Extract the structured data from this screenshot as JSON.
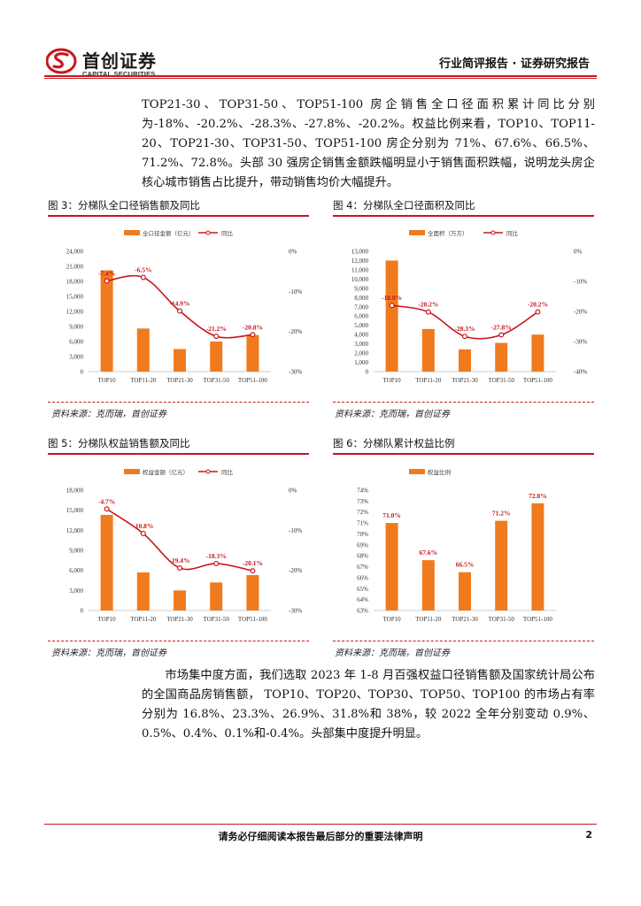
{
  "header": {
    "logo_cn": "首创证券",
    "logo_en": "CAPITAL SECURITIES",
    "report_type": "行业简评报告 · 证券研究报告",
    "brand_color": "#c8161d"
  },
  "paragraphs": [
    "TOP21-30、TOP31-50、TOP51-100 房企销售全口径面积累计同比分别为-18%、-20.2%、-28.3%、-27.8%、-20.2%。权益比例来看，TOP10、TOP11-20、TOP21-30、TOP31-50、TOP51-100 房企分别为 71%、67.6%、66.5%、71.2%、72.8%。头部 30 强房企销售金额跌幅明显小于销售面积跌幅，说明龙头房企核心城市销售占比提升，带动销售均价大幅提升。",
    "市场集中度方面，我们选取 2023 年 1-8 月百强权益口径销售额及国家统计局公布的全国商品房销售额， TOP10、TOP20、TOP30、TOP50、TOP100 的市场占有率分别为 16.8%、23.3%、26.9%、31.8%和 38%，较 2022 全年分别变动 0.9%、0.5%、0.4%、0.1%和-0.4%。头部集中度提升明显。"
  ],
  "figures": [
    {
      "title": "图 3：分梯队全口径销售额及同比",
      "source": "资料来源：克而瑞，首创证券"
    },
    {
      "title": "图 4：分梯队全口径面积及同比",
      "source": "资料来源：克而瑞，首创证券"
    },
    {
      "title": "图 5：分梯队权益销售额及同比",
      "source": "资料来源：克而瑞，首创证券"
    },
    {
      "title": "图 6：分梯队累计权益比例",
      "source": "资料来源：克而瑞，首创证券"
    }
  ],
  "chart_data": [
    {
      "type": "bar",
      "title": "图 3：分梯队全口径销售额及同比",
      "categories": [
        "TOP10",
        "TOP11-20",
        "TOP21-30",
        "TOP31-50",
        "TOP51-100"
      ],
      "series": [
        {
          "name": "全口径金额（亿元）",
          "kind": "bar",
          "axis": "left",
          "values": [
            20200,
            8600,
            4500,
            6000,
            7300
          ]
        },
        {
          "name": "同比",
          "kind": "line",
          "axis": "right",
          "values": [
            -7.4,
            -6.5,
            -14.9,
            -21.2,
            -20.8
          ]
        }
      ],
      "data_labels": [
        "-7.4%",
        "-6.5%",
        "-14.9%",
        "-21.2%",
        "-20.8%"
      ],
      "ylim_left": [
        0,
        24000
      ],
      "yticks_left": [
        "0",
        "3,000",
        "6,000",
        "9,000",
        "12,000",
        "15,000",
        "18,000",
        "21,000",
        "24,000"
      ],
      "ylim_right": [
        -30,
        0
      ],
      "yticks_right": [
        "-30%",
        "-20%",
        "-10%",
        "0%"
      ]
    },
    {
      "type": "bar",
      "title": "图 4：分梯队全口径面积及同比",
      "categories": [
        "TOP10",
        "TOP11-20",
        "TOP21-30",
        "TOP31-50",
        "TOP51-100"
      ],
      "series": [
        {
          "name": "全面积（万方）",
          "kind": "bar",
          "axis": "left",
          "values": [
            12000,
            4600,
            2400,
            3100,
            4000
          ]
        },
        {
          "name": "同比",
          "kind": "line",
          "axis": "right",
          "values": [
            -18.0,
            -20.2,
            -28.3,
            -27.8,
            -20.2
          ]
        }
      ],
      "data_labels": [
        "-18.0%",
        "-20.2%",
        "-28.3%",
        "-27.8%",
        "-20.2%"
      ],
      "ylim_left": [
        0,
        13000
      ],
      "yticks_left": [
        "0",
        "1,000",
        "2,000",
        "3,000",
        "4,000",
        "5,000",
        "6,000",
        "7,000",
        "8,000",
        "9,000",
        "10,000",
        "11,000",
        "12,000",
        "13,000"
      ],
      "ylim_right": [
        -40,
        0
      ],
      "yticks_right": [
        "-40%",
        "-30%",
        "-20%",
        "-10%",
        "0%"
      ]
    },
    {
      "type": "bar",
      "title": "图 5：分梯队权益销售额及同比",
      "categories": [
        "TOP10",
        "TOP11-20",
        "TOP21-30",
        "TOP31-50",
        "TOP51-100"
      ],
      "series": [
        {
          "name": "权益金额（亿元）",
          "kind": "bar",
          "axis": "left",
          "values": [
            14300,
            5700,
            3000,
            4200,
            5300
          ]
        },
        {
          "name": "同比",
          "kind": "line",
          "axis": "right",
          "values": [
            -4.7,
            -10.8,
            -19.4,
            -18.3,
            -20.1
          ]
        }
      ],
      "data_labels": [
        "-4.7%",
        "-10.8%",
        "-19.4%",
        "-18.3%",
        "-20.1%"
      ],
      "ylim_left": [
        0,
        18000
      ],
      "yticks_left": [
        "0",
        "3,000",
        "6,000",
        "9,000",
        "12,000",
        "15,000",
        "18,000"
      ],
      "ylim_right": [
        -30,
        0
      ],
      "yticks_right": [
        "-30%",
        "-20%",
        "-10%",
        "0%"
      ]
    },
    {
      "type": "bar",
      "title": "图 6：分梯队累计权益比例",
      "categories": [
        "TOP10",
        "TOP11-20",
        "TOP21-30",
        "TOP31-50",
        "TOP51-100"
      ],
      "series": [
        {
          "name": "权益比例",
          "kind": "bar",
          "axis": "left",
          "values": [
            71.0,
            67.6,
            66.5,
            71.2,
            72.8
          ]
        }
      ],
      "data_labels": [
        "71.0%",
        "67.6%",
        "66.5%",
        "71.2%",
        "72.8%"
      ],
      "ylim_left": [
        63,
        74
      ],
      "yticks_left": [
        "63%",
        "64%",
        "65%",
        "66%",
        "67%",
        "68%",
        "69%",
        "70%",
        "71%",
        "72%",
        "73%",
        "74%"
      ]
    }
  ],
  "footer": {
    "note": "请务必仔细阅读本报告最后部分的重要法律声明",
    "page": "2"
  }
}
